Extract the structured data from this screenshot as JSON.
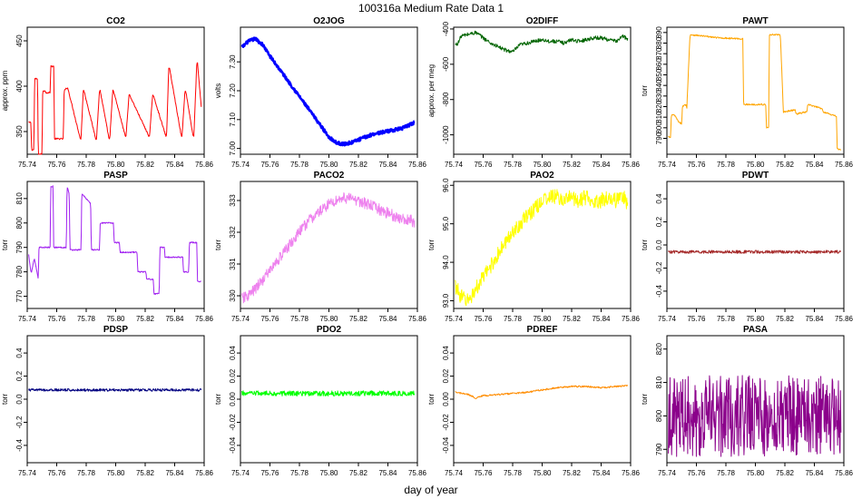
{
  "figure": {
    "title": "100316a   Medium Rate Data 1",
    "xlabel": "day of year"
  },
  "chart_data": [
    {
      "type": "line",
      "title": "CO2",
      "ylabel": "approx. ppm",
      "color": "#ff0000",
      "xlim": [
        75.74,
        75.86
      ],
      "ylim": [
        325,
        465
      ],
      "xticks": [
        75.74,
        75.76,
        75.78,
        75.8,
        75.82,
        75.84,
        75.86
      ],
      "xtick_labels": [
        "75.74",
        "75.76",
        "75.78",
        "75.80",
        "75.82",
        "75.84",
        "75.86"
      ],
      "yticks": [
        350,
        400,
        450
      ],
      "ytick_labels": [
        "350",
        "400",
        "450"
      ],
      "x": [
        75.741,
        75.7425,
        75.743,
        75.7445,
        75.745,
        75.747,
        75.7475,
        75.75,
        75.7505,
        75.752,
        75.7525,
        75.7555,
        75.756,
        75.758,
        75.7585,
        75.7645,
        75.765,
        75.767,
        75.7675,
        75.776,
        75.7765,
        75.778,
        75.7785,
        75.7865,
        75.787,
        75.789,
        75.7895,
        75.7955,
        75.796,
        75.798,
        75.7985,
        75.8065,
        75.807,
        75.809,
        75.8095,
        75.8225,
        75.823,
        75.825,
        75.8255,
        75.834,
        75.8345,
        75.836,
        75.8365,
        75.8445,
        75.845,
        75.847,
        75.8475,
        75.8525,
        75.853,
        75.855,
        75.8555,
        75.858
      ],
      "y": [
        360,
        360,
        330,
        330,
        408,
        408,
        325,
        325,
        395,
        395,
        393,
        393,
        422,
        422,
        342,
        342,
        395,
        398,
        398,
        342,
        342,
        395,
        395,
        342,
        342,
        395,
        395,
        342,
        342,
        395,
        395,
        345,
        345,
        390,
        390,
        345,
        345,
        390,
        390,
        345,
        345,
        420,
        420,
        345,
        345,
        395,
        395,
        345,
        345,
        425,
        425,
        378
      ]
    },
    {
      "type": "line",
      "title": "O2JOG",
      "ylabel": "volts",
      "color": "#0000ff",
      "xlim": [
        75.74,
        75.86
      ],
      "ylim": [
        6.98,
        7.42
      ],
      "xticks": [
        75.74,
        75.76,
        75.78,
        75.8,
        75.82,
        75.84,
        75.86
      ],
      "xtick_labels": [
        "75.74",
        "75.76",
        "75.78",
        "75.80",
        "75.82",
        "75.84",
        "75.86"
      ],
      "yticks": [
        7.0,
        7.1,
        7.2,
        7.3
      ],
      "ytick_labels": [
        "7.00",
        "7.10",
        "7.20",
        "7.30"
      ],
      "x": [
        75.741,
        75.745,
        75.75,
        75.755,
        75.76,
        75.77,
        75.78,
        75.79,
        75.8,
        75.805,
        75.81,
        75.815,
        75.82,
        75.83,
        75.84,
        75.85,
        75.858
      ],
      "y": [
        7.35,
        7.37,
        7.38,
        7.36,
        7.32,
        7.25,
        7.18,
        7.11,
        7.04,
        7.02,
        7.015,
        7.02,
        7.03,
        7.05,
        7.06,
        7.07,
        7.09
      ]
    },
    {
      "type": "line",
      "title": "O2DIFF",
      "ylabel": "approx. per meg",
      "color": "#006400",
      "xlim": [
        75.74,
        75.86
      ],
      "ylim": [
        -1110,
        -390
      ],
      "xticks": [
        75.74,
        75.76,
        75.78,
        75.8,
        75.82,
        75.84,
        75.86
      ],
      "xtick_labels": [
        "75.74",
        "75.76",
        "75.78",
        "75.80",
        "75.82",
        "75.84",
        "75.86"
      ],
      "yticks": [
        -1000,
        -800,
        -600,
        -400
      ],
      "ytick_labels": [
        "-1000",
        "-800",
        "-600",
        "-400"
      ],
      "x": [
        75.741,
        75.743,
        75.745,
        75.75,
        75.755,
        75.76,
        75.765,
        75.77,
        75.775,
        75.78,
        75.785,
        75.79,
        75.795,
        75.8,
        75.805,
        75.81,
        75.815,
        75.82,
        75.825,
        75.83,
        75.835,
        75.84,
        75.845,
        75.85,
        75.855,
        75.858
      ],
      "y": [
        -490,
        -480,
        -440,
        -430,
        -420,
        -450,
        -480,
        -500,
        -520,
        -530,
        -490,
        -480,
        -470,
        -460,
        -470,
        -470,
        -480,
        -460,
        -470,
        -460,
        -450,
        -450,
        -460,
        -470,
        -440,
        -460
      ]
    },
    {
      "type": "line",
      "title": "PAWT",
      "ylabel": "torr",
      "color": "#ffa500",
      "xlim": [
        75.74,
        75.86
      ],
      "ylim": [
        775,
        895
      ],
      "xticks": [
        75.74,
        75.76,
        75.78,
        75.8,
        75.82,
        75.84,
        75.86
      ],
      "xtick_labels": [
        "75.74",
        "75.76",
        "75.78",
        "75.80",
        "75.82",
        "75.84",
        "75.86"
      ],
      "yticks": [
        790,
        800,
        810,
        820,
        830,
        840,
        850,
        860,
        870,
        880,
        890
      ],
      "ytick_labels": [
        "790",
        "800",
        "810",
        "820",
        "830",
        "840",
        "850",
        "860",
        "870",
        "880",
        "890"
      ],
      "x": [
        75.741,
        75.7425,
        75.743,
        75.745,
        75.747,
        75.748,
        75.75,
        75.7505,
        75.753,
        75.7535,
        75.7555,
        75.756,
        75.775,
        75.7915,
        75.792,
        75.807,
        75.8075,
        75.809,
        75.8095,
        75.8165,
        75.817,
        75.819,
        75.8195,
        75.827,
        75.8275,
        75.835,
        75.8355,
        75.8455,
        75.846,
        75.855,
        75.8555,
        75.858
      ],
      "y": [
        792,
        790,
        812,
        812,
        808,
        805,
        804,
        820,
        822,
        818,
        884,
        888,
        885,
        884,
        822,
        822,
        800,
        800,
        888,
        888,
        885,
        815,
        815,
        817,
        813,
        815,
        822,
        818,
        815,
        811,
        780,
        779
      ]
    },
    {
      "type": "line",
      "title": "PASP",
      "ylabel": "torr",
      "color": "#a020f0",
      "xlim": [
        75.74,
        75.86
      ],
      "ylim": [
        765,
        817
      ],
      "xticks": [
        75.74,
        75.76,
        75.78,
        75.8,
        75.82,
        75.84,
        75.86
      ],
      "xtick_labels": [
        "75.74",
        "75.76",
        "75.78",
        "75.80",
        "75.82",
        "75.84",
        "75.86"
      ],
      "yticks": [
        770,
        780,
        790,
        800,
        810
      ],
      "ytick_labels": [
        "770",
        "780",
        "790",
        "800",
        "810"
      ],
      "x": [
        75.741,
        75.7425,
        75.743,
        75.7445,
        75.745,
        75.7475,
        75.748,
        75.7555,
        75.756,
        75.7575,
        75.758,
        75.7665,
        75.767,
        75.7685,
        75.769,
        75.7765,
        75.777,
        75.783,
        75.7835,
        75.789,
        75.7895,
        75.7985,
        75.799,
        75.8025,
        75.803,
        75.8145,
        75.815,
        75.8205,
        75.821,
        75.8255,
        75.826,
        75.8295,
        75.83,
        75.833,
        75.8335,
        75.8455,
        75.846,
        75.8495,
        75.85,
        75.855,
        75.8555,
        75.858
      ],
      "y": [
        787,
        780,
        780,
        785,
        785,
        777,
        790,
        790,
        815,
        815,
        790,
        790,
        815,
        812,
        789,
        789,
        812,
        808,
        789,
        789,
        800,
        800,
        792,
        792,
        788,
        788,
        780,
        780,
        777,
        777,
        771,
        771,
        790,
        790,
        786,
        786,
        780,
        780,
        792,
        792,
        776,
        776
      ]
    },
    {
      "type": "line",
      "title": "PACO2",
      "ylabel": "torr",
      "color": "#ee82ee",
      "xlim": [
        75.74,
        75.86
      ],
      "ylim": [
        329.6,
        333.6
      ],
      "xticks": [
        75.74,
        75.76,
        75.78,
        75.8,
        75.82,
        75.84,
        75.86
      ],
      "xtick_labels": [
        "75.74",
        "75.76",
        "75.78",
        "75.80",
        "75.82",
        "75.84",
        "75.86"
      ],
      "yticks": [
        330,
        331,
        332,
        333
      ],
      "ytick_labels": [
        "330",
        "331",
        "332",
        "333"
      ],
      "x": [
        75.741,
        75.745,
        75.75,
        75.755,
        75.76,
        75.765,
        75.77,
        75.775,
        75.78,
        75.785,
        75.79,
        75.795,
        75.8,
        75.805,
        75.81,
        75.815,
        75.82,
        75.825,
        75.83,
        75.835,
        75.84,
        75.845,
        75.85,
        75.855,
        75.858
      ],
      "y": [
        329.9,
        330.0,
        330.2,
        330.5,
        330.8,
        331.1,
        331.4,
        331.7,
        332.0,
        332.3,
        332.5,
        332.7,
        332.9,
        333.0,
        333.1,
        333.05,
        333.0,
        332.9,
        332.8,
        332.7,
        332.6,
        332.5,
        332.4,
        332.4,
        332.3
      ]
    },
    {
      "type": "line",
      "title": "PAO2",
      "ylabel": "torr",
      "color": "#ffff00",
      "xlim": [
        75.74,
        75.86
      ],
      "ylim": [
        92.8,
        96.1
      ],
      "xticks": [
        75.74,
        75.76,
        75.78,
        75.8,
        75.82,
        75.84,
        75.86
      ],
      "xtick_labels": [
        "75.74",
        "75.76",
        "75.78",
        "75.80",
        "75.82",
        "75.84",
        "75.86"
      ],
      "yticks": [
        93,
        94,
        95,
        96
      ],
      "ytick_labels": [
        "93.0",
        "94.0",
        "95.0",
        "96.0"
      ],
      "x": [
        75.741,
        75.745,
        75.75,
        75.755,
        75.76,
        75.765,
        75.77,
        75.775,
        75.78,
        75.785,
        75.79,
        75.795,
        75.8,
        75.805,
        75.81,
        75.815,
        75.82,
        75.825,
        75.83,
        75.835,
        75.84,
        75.845,
        75.85,
        75.855,
        75.858
      ],
      "y": [
        93.4,
        93.1,
        93.0,
        93.3,
        93.6,
        93.9,
        94.2,
        94.5,
        94.8,
        95.0,
        95.2,
        95.4,
        95.6,
        95.7,
        95.7,
        95.6,
        95.7,
        95.6,
        95.7,
        95.6,
        95.6,
        95.7,
        95.6,
        95.7,
        95.5
      ]
    },
    {
      "type": "line",
      "title": "PDWT",
      "ylabel": "torr",
      "color": "#a52a2a",
      "xlim": [
        75.74,
        75.86
      ],
      "ylim": [
        -0.55,
        0.55
      ],
      "xticks": [
        75.74,
        75.76,
        75.78,
        75.8,
        75.82,
        75.84,
        75.86
      ],
      "xtick_labels": [
        "75.74",
        "75.76",
        "75.78",
        "75.80",
        "75.82",
        "75.84",
        "75.86"
      ],
      "yticks": [
        -0.4,
        -0.2,
        0.0,
        0.2,
        0.4
      ],
      "ytick_labels": [
        "-0.4",
        "-0.2",
        "0.0",
        "0.2",
        "0.4"
      ],
      "x": [
        75.741,
        75.858
      ],
      "y": [
        -0.06,
        -0.06
      ]
    },
    {
      "type": "line",
      "title": "PDSP",
      "ylabel": "torr",
      "color": "#000080",
      "xlim": [
        75.74,
        75.86
      ],
      "ylim": [
        -0.55,
        0.55
      ],
      "xticks": [
        75.74,
        75.76,
        75.78,
        75.8,
        75.82,
        75.84,
        75.86
      ],
      "xtick_labels": [
        "75.74",
        "75.76",
        "75.78",
        "75.80",
        "75.82",
        "75.84",
        "75.86"
      ],
      "yticks": [
        -0.4,
        -0.2,
        0.0,
        0.2,
        0.4
      ],
      "ytick_labels": [
        "-0.4",
        "-0.2",
        "0.0",
        "0.2",
        "0.4"
      ],
      "x": [
        75.741,
        75.858
      ],
      "y": [
        0.08,
        0.08
      ]
    },
    {
      "type": "line",
      "title": "PDO2",
      "ylabel": "torr",
      "color": "#00ff00",
      "xlim": [
        75.74,
        75.86
      ],
      "ylim": [
        -0.055,
        0.055
      ],
      "xticks": [
        75.74,
        75.76,
        75.78,
        75.8,
        75.82,
        75.84,
        75.86
      ],
      "xtick_labels": [
        "75.74",
        "75.76",
        "75.78",
        "75.80",
        "75.82",
        "75.84",
        "75.86"
      ],
      "yticks": [
        -0.04,
        -0.02,
        0.0,
        0.02,
        0.04
      ],
      "ytick_labels": [
        "-0.04",
        "-0.02",
        "0.00",
        "0.02",
        "0.04"
      ],
      "x": [
        75.741,
        75.858
      ],
      "y": [
        0.005,
        0.005
      ]
    },
    {
      "type": "line",
      "title": "PDREF",
      "ylabel": "torr",
      "color": "#ff8c00",
      "xlim": [
        75.74,
        75.86
      ],
      "ylim": [
        -0.055,
        0.055
      ],
      "xticks": [
        75.74,
        75.76,
        75.78,
        75.8,
        75.82,
        75.84,
        75.86
      ],
      "xtick_labels": [
        "75.74",
        "75.76",
        "75.78",
        "75.80",
        "75.82",
        "75.84",
        "75.86"
      ],
      "yticks": [
        -0.04,
        -0.02,
        0.0,
        0.02,
        0.04
      ],
      "ytick_labels": [
        "-0.04",
        "-0.02",
        "0.00",
        "0.02",
        "0.04"
      ],
      "x": [
        75.741,
        75.75,
        75.755,
        75.76,
        75.77,
        75.78,
        75.79,
        75.8,
        75.81,
        75.82,
        75.83,
        75.84,
        75.85,
        75.858
      ],
      "y": [
        0.006,
        0.004,
        0.001,
        0.003,
        0.004,
        0.005,
        0.006,
        0.008,
        0.01,
        0.011,
        0.011,
        0.01,
        0.011,
        0.012
      ]
    },
    {
      "type": "line",
      "title": "PASA",
      "ylabel": "torr",
      "color": "#8b008b",
      "xlim": [
        75.74,
        75.86
      ],
      "ylim": [
        786,
        824
      ],
      "xticks": [
        75.74,
        75.76,
        75.78,
        75.8,
        75.82,
        75.84,
        75.86
      ],
      "xtick_labels": [
        "75.74",
        "75.76",
        "75.78",
        "75.80",
        "75.82",
        "75.84",
        "75.86"
      ],
      "yticks": [
        790,
        800,
        810,
        820
      ],
      "ytick_labels": [
        "790",
        "800",
        "810",
        "820"
      ],
      "x": [
        75.741,
        75.858
      ],
      "y": [
        800,
        800
      ]
    }
  ]
}
